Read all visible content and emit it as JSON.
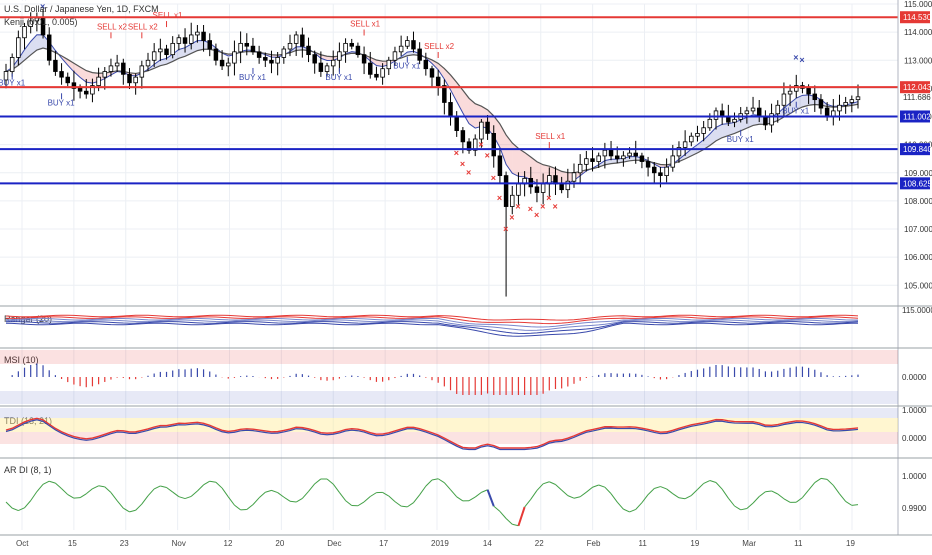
{
  "chart_data": {
    "type": "candlestick",
    "title": "U.S. Dollar / Japanese Yen, 1D, FXCM",
    "indicator_label": "Kenji (0.01, 0.005)",
    "y_axis": {
      "min": 104.3,
      "max": 115.0,
      "ticks": [
        105.0,
        106.0,
        107.0,
        108.0,
        109.0,
        110.0,
        111.0,
        112.0,
        113.0,
        114.0,
        115.0
      ]
    },
    "x_axis": {
      "tick_labels": [
        "Oct",
        "15",
        "23",
        "Nov",
        "12",
        "20",
        "Dec",
        "17",
        "2019",
        "14",
        "22",
        "Feb",
        "11",
        "19",
        "Mar",
        "11",
        "19"
      ]
    },
    "horizontal_levels": [
      {
        "value": 114.53,
        "label": "114.530",
        "color": "#e53935"
      },
      {
        "value": 112.043,
        "label": "112.043",
        "color": "#e53935"
      },
      {
        "value": 111.002,
        "label": "111.002",
        "color": "#1a23c4"
      },
      {
        "value": 109.84,
        "label": "109.840",
        "color": "#1a23c4"
      },
      {
        "value": 108.625,
        "label": "108.625",
        "color": "#1a23c4"
      }
    ],
    "last_price_label": "111.686",
    "close_series": [
      112.6,
      113.1,
      113.8,
      114.2,
      114.4,
      114.5,
      113.9,
      113.0,
      112.6,
      112.4,
      112.2,
      112.0,
      111.9,
      111.8,
      112.1,
      112.4,
      112.6,
      112.8,
      112.9,
      112.5,
      112.2,
      112.4,
      112.8,
      113.0,
      113.3,
      113.4,
      113.2,
      113.6,
      113.8,
      113.6,
      113.9,
      114.0,
      113.7,
      113.4,
      113.0,
      112.8,
      112.9,
      113.3,
      113.6,
      113.5,
      113.3,
      113.1,
      113.0,
      112.9,
      113.1,
      113.4,
      113.6,
      113.9,
      113.5,
      113.2,
      112.9,
      112.6,
      112.8,
      113.0,
      113.3,
      113.6,
      113.5,
      113.2,
      112.9,
      112.5,
      112.4,
      112.7,
      113.0,
      113.3,
      113.5,
      113.7,
      113.4,
      113.0,
      112.7,
      112.4,
      112.1,
      111.5,
      111.0,
      110.5,
      110.1,
      109.8,
      110.2,
      110.8,
      110.4,
      109.6,
      108.9,
      107.8,
      108.2,
      108.6,
      108.8,
      108.5,
      108.3,
      108.6,
      108.9,
      108.6,
      108.4,
      108.7,
      109.0,
      109.3,
      109.5,
      109.4,
      109.6,
      109.8,
      109.6,
      109.5,
      109.6,
      109.7,
      109.6,
      109.4,
      109.2,
      109.0,
      108.9,
      109.2,
      109.6,
      109.9,
      110.1,
      110.3,
      110.4,
      110.6,
      110.9,
      111.2,
      111.0,
      110.8,
      110.9,
      111.1,
      111.2,
      111.3,
      111.0,
      110.7,
      111.1,
      111.4,
      111.8,
      111.9,
      112.1,
      112.0,
      111.8,
      111.6,
      111.3,
      111.0,
      111.2,
      111.4,
      111.5,
      111.6,
      111.7
    ],
    "indicators": [
      {
        "name": "Ranger (20)",
        "label": "Ranger (20)",
        "scale": {
          "min": 0,
          "max": 1
        },
        "axis_labels": [
          "115.0000"
        ],
        "series_colors": [
          "#e53935",
          "#7986cb",
          "#3949ab"
        ]
      },
      {
        "name": "MSI (10)",
        "label": "MSI (10)",
        "axis_labels": [
          "0.0000"
        ],
        "pos_color": "#3949ab",
        "neg_color": "#e53935"
      },
      {
        "name": "TDI (13, 21)",
        "label": "TDI (13, 21)",
        "axis_labels": [
          "1.0000",
          "0.0000"
        ],
        "line_color": "#3949ab",
        "signal_color": "#e53935"
      },
      {
        "name": "AR DI (8, 1)",
        "label": "AR DI (8, 1)",
        "axis_labels": [
          "1.0000",
          "0.9900"
        ],
        "line_color": "#43a047",
        "up_color": "#e53935",
        "down_color": "#3949ab"
      }
    ],
    "signals": [
      {
        "text": "SELL x2",
        "idx": 70,
        "type": "sell"
      },
      {
        "text": "SELL x1",
        "idx": 58,
        "type": "sell"
      },
      {
        "text": "SELL x1",
        "idx": 88,
        "type": "sell"
      },
      {
        "text": "SELL x2",
        "idx": 17,
        "type": "sell"
      },
      {
        "text": "SELL x2",
        "idx": 22,
        "type": "sell"
      },
      {
        "text": "SELL x1",
        "idx": 26,
        "type": "sell"
      },
      {
        "text": "BUY x1",
        "idx": 9,
        "type": "buy"
      },
      {
        "text": "BUY x1",
        "idx": 40,
        "type": "buy"
      },
      {
        "text": "BUY x1",
        "idx": 54,
        "type": "buy"
      },
      {
        "text": "BUY x1",
        "idx": 65,
        "type": "buy"
      },
      {
        "text": "BUY x1",
        "idx": 119,
        "type": "buy"
      },
      {
        "text": "BUY x1",
        "idx": 128,
        "type": "buy"
      },
      {
        "text": "BUY x1",
        "idx": 1,
        "type": "buy"
      }
    ]
  }
}
